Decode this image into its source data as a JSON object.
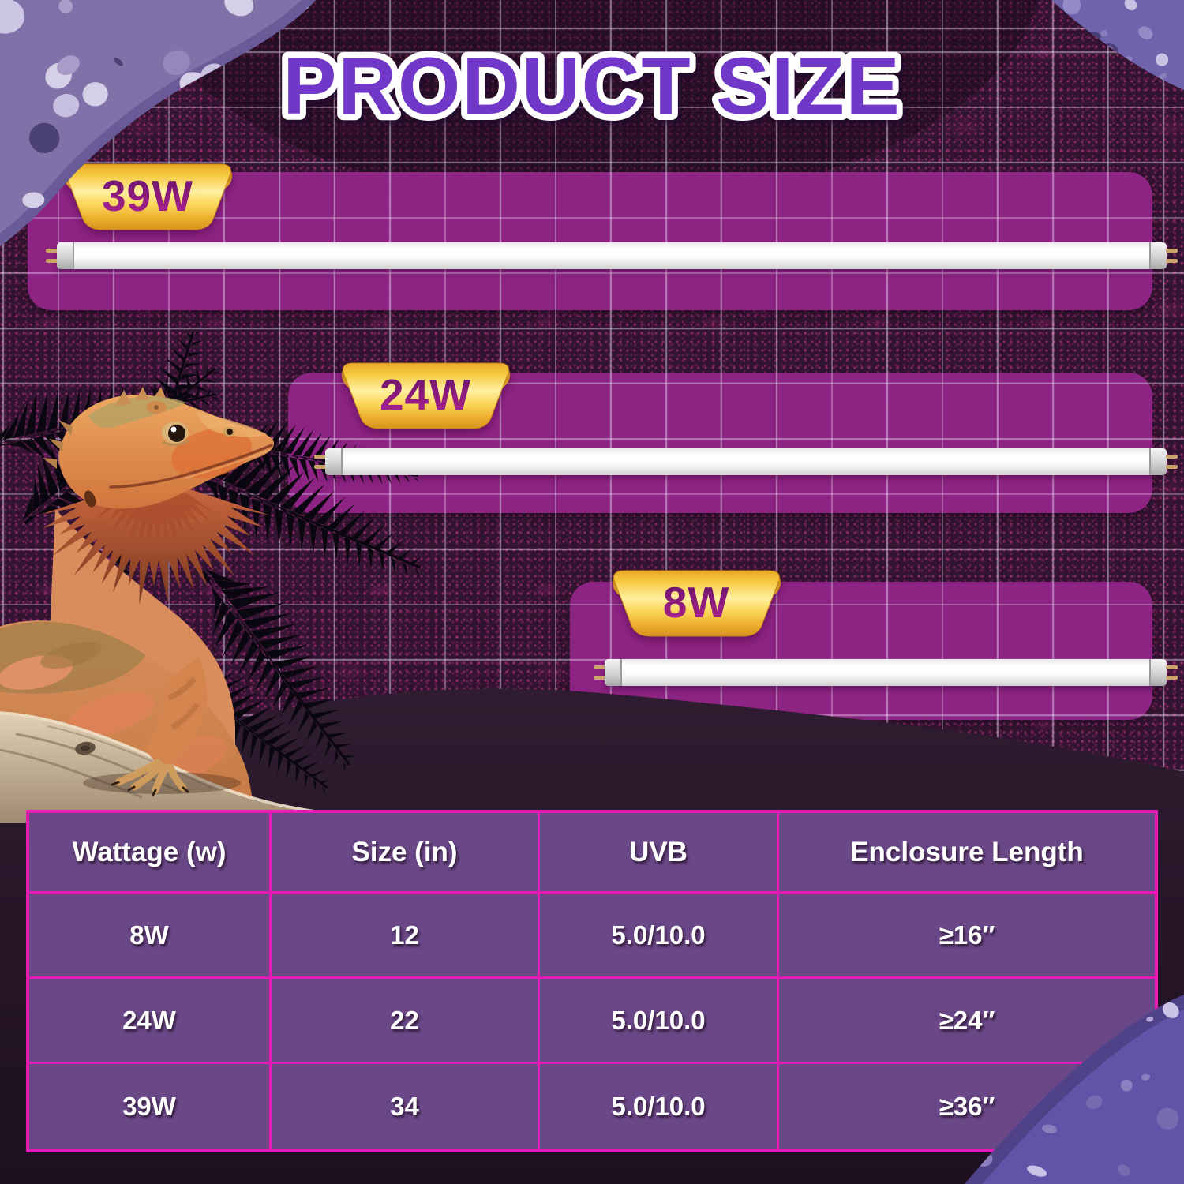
{
  "title": "PRODUCT SIZE",
  "lamps": [
    {
      "id": "39w",
      "wattage_label": "39W"
    },
    {
      "id": "24w",
      "wattage_label": "24W"
    },
    {
      "id": "8w",
      "wattage_label": "8W"
    }
  ],
  "table": {
    "headers": [
      "Wattage (w)",
      "Size (in)",
      "UVB",
      "Enclosure Length"
    ],
    "rows": [
      [
        "8W",
        "12",
        "5.0/10.0",
        "≥16″"
      ],
      [
        "24W",
        "22",
        "5.0/10.0",
        "≥24″"
      ],
      [
        "39W",
        "34",
        "5.0/10.0",
        "≥36″"
      ]
    ]
  },
  "colors": {
    "accent_magenta": "#e31cb8",
    "panel_purple": "#8d2383",
    "table_purple": "#6a4887",
    "title_purple": "#7137c8",
    "badge_gold": "#f5c33b"
  },
  "decor": {
    "animal": "bearded-dragon",
    "plants": "fern-silhouettes"
  }
}
